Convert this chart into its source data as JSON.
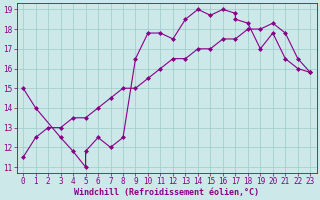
{
  "xlabel": "Windchill (Refroidissement éolien,°C)",
  "xlim": [
    -0.5,
    23.5
  ],
  "ylim": [
    10.7,
    19.3
  ],
  "xticks": [
    0,
    1,
    2,
    3,
    4,
    5,
    6,
    7,
    8,
    9,
    10,
    11,
    12,
    13,
    14,
    15,
    16,
    17,
    18,
    19,
    20,
    21,
    22,
    23
  ],
  "yticks": [
    11,
    12,
    13,
    14,
    15,
    16,
    17,
    18,
    19
  ],
  "bg_color": "#cce8e8",
  "line_color": "#880088",
  "grid_color": "#99cccc",
  "line1_x": [
    0,
    1,
    3,
    4,
    5,
    5,
    6,
    7,
    8,
    9,
    10,
    11,
    12,
    13,
    14,
    15,
    16,
    17,
    17,
    18,
    19,
    20,
    21,
    22,
    23
  ],
  "line1_y": [
    15,
    14,
    12.5,
    11.8,
    11.0,
    11.8,
    12.5,
    12.0,
    12.5,
    16.5,
    17.8,
    17.8,
    17.5,
    18.5,
    19.0,
    18.7,
    19.0,
    18.8,
    18.5,
    18.3,
    17.0,
    17.8,
    16.5,
    16.0,
    15.8
  ],
  "line2_x": [
    0,
    1,
    2,
    3,
    4,
    5,
    6,
    7,
    8,
    9,
    10,
    11,
    12,
    13,
    14,
    15,
    16,
    17,
    18,
    19,
    20,
    21,
    22,
    23
  ],
  "line2_y": [
    11.5,
    12.5,
    13.0,
    13.0,
    13.5,
    13.5,
    14.0,
    14.5,
    15.0,
    15.0,
    15.5,
    16.0,
    16.5,
    16.5,
    17.0,
    17.0,
    17.5,
    17.5,
    18.0,
    18.0,
    18.3,
    17.8,
    16.5,
    15.8
  ],
  "font_size_label": 6.0,
  "font_size_tick": 5.5,
  "marker": "D",
  "marker_size": 2.0,
  "line_width": 0.8
}
